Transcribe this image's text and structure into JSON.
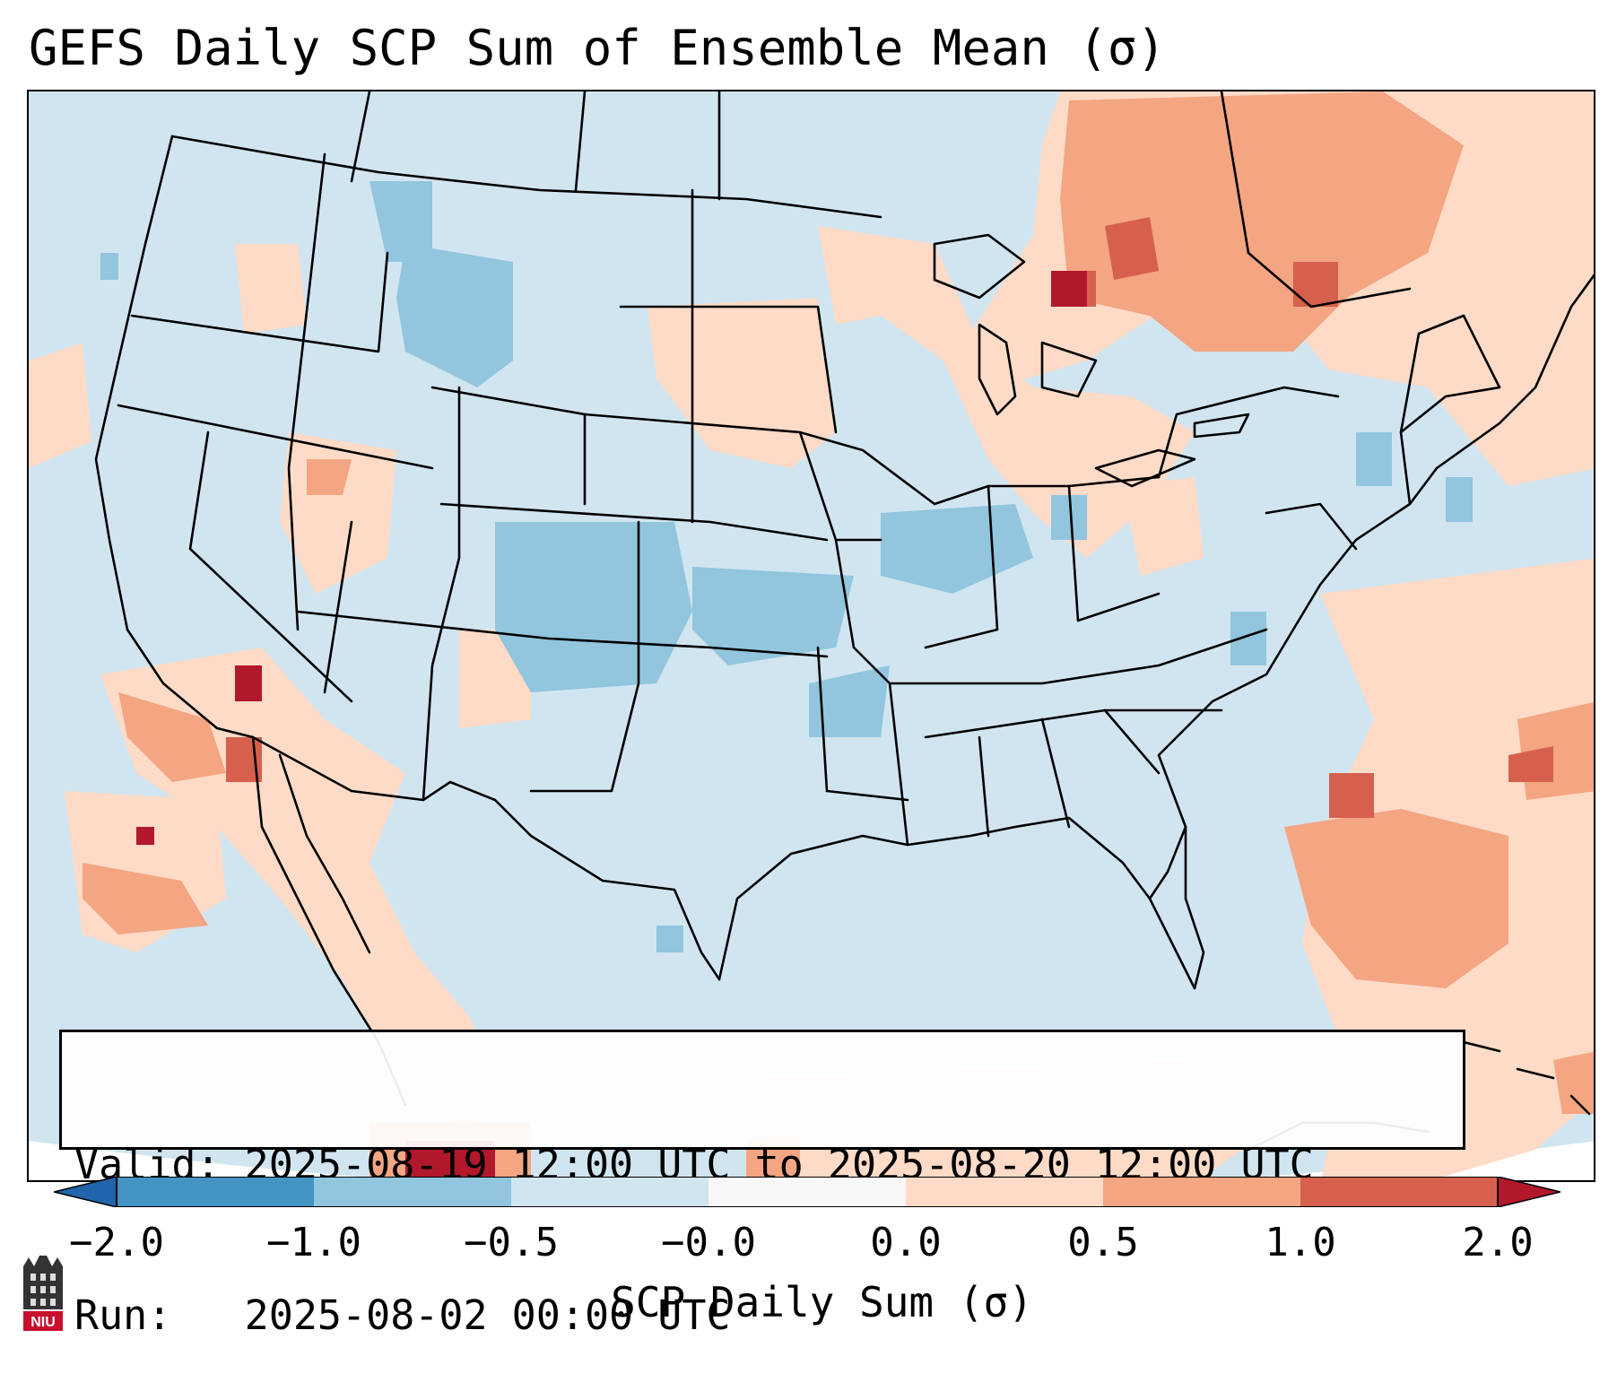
{
  "title": "GEFS Daily SCP Sum of Ensemble Mean (σ)",
  "info": {
    "valid_label": "Valid:",
    "valid_value": "2025-08-19 12:00 UTC to 2025-08-20 12:00 UTC",
    "run_label": "Run:",
    "run_value": "2025-08-02 00:00 UTC"
  },
  "colorbar": {
    "label": "SCP Daily Sum (σ)",
    "ticks": [
      "−2.0",
      "−1.0",
      "−0.5",
      "−0.0",
      "0.0",
      "0.5",
      "1.0",
      "2.0"
    ],
    "bin_colors": [
      "#4393c3",
      "#92c5de",
      "#d1e5f0",
      "#f7f7f7",
      "#fddbc7",
      "#f4a582",
      "#d6604d"
    ],
    "extend_low_color": "#2166ac",
    "extend_high_color": "#b2182b"
  },
  "map": {
    "background_color": "#d1e5f0",
    "outside_color": "#ffffff",
    "levels": {
      "light_blue": "#92c5de",
      "light_red": "#fddbc7",
      "mid_red": "#f4a582",
      "red": "#d6604d",
      "dark_red": "#b2182b"
    }
  },
  "logo": {
    "text": "NIU"
  }
}
